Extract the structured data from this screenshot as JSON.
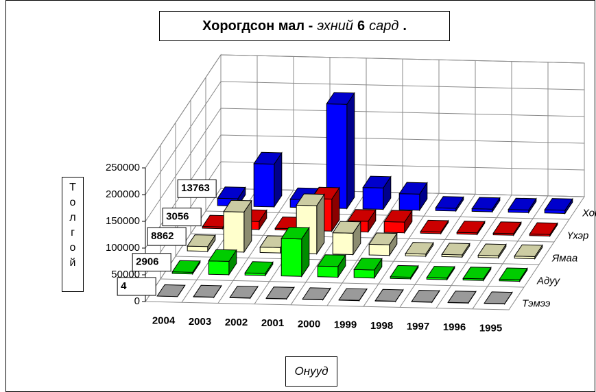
{
  "chart_data": {
    "type": "bar3d",
    "title": [
      "Хорогдсон мал -",
      "эхний",
      "6",
      "сард",
      "."
    ],
    "y_label": "Толгой",
    "x_label": "Онууд",
    "categories": [
      "2004",
      "2003",
      "2002",
      "2001",
      "2000",
      "1999",
      "1998",
      "1997",
      "1996",
      "1995"
    ],
    "series": [
      {
        "name": "Хонь",
        "color": "#0000ff",
        "values": [
          13763,
          80000,
          15000,
          195000,
          40000,
          30000,
          5000,
          5000,
          5000,
          6000
        ]
      },
      {
        "name": "Үхэр",
        "color": "#ff0000",
        "values": [
          3056,
          15000,
          3000,
          60000,
          20000,
          20000,
          3000,
          3000,
          3000,
          3000
        ]
      },
      {
        "name": "Ямаа",
        "color": "#ffffcc",
        "values": [
          8862,
          75000,
          10000,
          90000,
          40000,
          20000,
          4000,
          4000,
          4000,
          4000
        ]
      },
      {
        "name": "Адуу",
        "color": "#00ff00",
        "values": [
          2906,
          25000,
          4000,
          70000,
          20000,
          15000,
          3000,
          3000,
          3000,
          3000
        ]
      },
      {
        "name": "Тэмээ",
        "color": "#c0c0c0",
        "values": [
          4,
          500,
          500,
          500,
          500,
          500,
          500,
          500,
          500,
          500
        ]
      }
    ],
    "ylim": [
      0,
      250000
    ],
    "yticks": [
      0,
      50000,
      100000,
      150000,
      200000,
      250000
    ],
    "grid": true
  }
}
